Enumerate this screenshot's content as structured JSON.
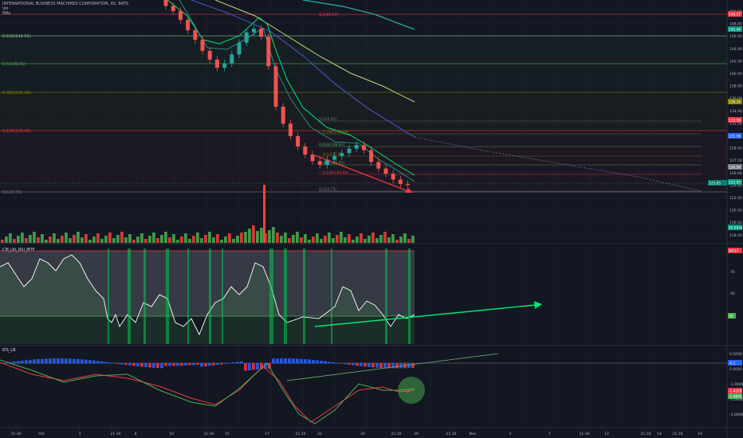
{
  "header": {
    "symbol_title": "INTERNATIONAL BUSINESS MACHINES CORPORATION, 60, BATS",
    "vol_label": "Vol",
    "mas_label": "MAs"
  },
  "indicators": {
    "rsi_title": "CM_Ult_RSI_MTF",
    "macd_title": "EIS_LB"
  },
  "fib_levels": [
    {
      "label": "1(149.57)",
      "price": 149.57,
      "color": "#f23645"
    },
    {
      "label": "0.618(142.65)",
      "price": 142.65,
      "color": "#81c784"
    },
    {
      "label": "0.5(139.01)",
      "price": 139.01,
      "color": "#4caf50"
    },
    {
      "label": "0.382(135.42)",
      "price": 135.42,
      "color": "#808000"
    },
    {
      "label": "0.236(130.95)",
      "price": 130.95,
      "color": "#f23645"
    },
    {
      "label": "0(123.73)",
      "price": 123.73,
      "color": "#787b86"
    }
  ],
  "fib_levels_2": [
    {
      "label": "1(133.95)",
      "price": 133.95
    },
    {
      "label": "0.786(130.56)",
      "price": 130.56
    },
    {
      "label": "0.618(128.61)",
      "price": 128.61
    },
    {
      "label": "0.5(127.04)",
      "price": 127.04
    },
    {
      "label": "0.382(126.92)",
      "price": 126.92
    },
    {
      "label": "0.236(124.08)",
      "price": 124.08
    },
    {
      "label": "0(123.73)",
      "price": 123.73
    }
  ],
  "price_axis": {
    "ticks": [
      "150.00",
      "148.00",
      "146.00",
      "144.00",
      "142.00",
      "140.00",
      "138.00",
      "136.00",
      "134.00",
      "132.00",
      "130.00",
      "128.50",
      "127.50",
      "126.00",
      "124.00",
      "122.50",
      "120.50",
      "119.50",
      "118.50"
    ],
    "price_tags": [
      {
        "text": "149.57",
        "color": "#f23645"
      },
      {
        "text": "145.44",
        "color": "#089981"
      },
      {
        "text": "136.34",
        "color": "#808000"
      },
      {
        "text": "133.96",
        "color": "#f23645"
      },
      {
        "text": "131.56",
        "color": "#2962ff"
      },
      {
        "text": "126.58",
        "color": "#787b86"
      },
      {
        "text": "125.95",
        "color": "#089981"
      },
      {
        "text": "95.6434",
        "color": "#089981"
      },
      {
        "text": "84.37",
        "color": "#f23645"
      }
    ],
    "current_price": "125.95"
  },
  "rsi_axis": {
    "ticks": [
      "90",
      "70",
      "50",
      "30"
    ],
    "tag": "30"
  },
  "macd_axis": {
    "ticks": [
      "0.5000",
      "0.0000",
      "-1.0000",
      "-2.0000",
      "-3.0000"
    ],
    "tags": [
      "-0.1",
      "-1.4209",
      "-1.9850"
    ]
  },
  "time_axis": {
    "labels": [
      "21:30",
      "Oct",
      "3",
      "21:30",
      "8",
      "10",
      "21:30",
      "15",
      "17",
      "21:30",
      "22",
      "24",
      "21:30",
      "29",
      "21:30",
      "Nov",
      "5",
      "7",
      "21:30",
      "12",
      "21:30",
      "14",
      "21:30",
      "19"
    ]
  },
  "colors": {
    "background": "#131722",
    "up": "#26a69a",
    "down": "#ef5350",
    "vol_up": "#4caf50",
    "vol_down": "#f44336",
    "ema_fast": "#00e676",
    "ema_mid": "#1a237e",
    "ema_slow": "#c8d27a",
    "rsi_fill": "#787b86",
    "rsi_line": "#ffffff",
    "macd_signal": "#f23645",
    "macd_line": "#4caf50",
    "trend_line": "#66bb6a",
    "arrow_red": "#f23645"
  },
  "chart_data": {
    "type": "candlestick",
    "title": "INTERNATIONAL BUSINESS MACHINES CORPORATION, 60, BATS",
    "ylim": [
      118,
      151
    ],
    "close_series_approx": [
      150.2,
      149.5,
      148.3,
      146.9,
      145.6,
      144.1,
      142.9,
      141.8,
      142.4,
      143.6,
      145.2,
      146.6,
      147.1,
      146.0,
      142.0,
      136.5,
      134.2,
      132.5,
      131.1,
      130.0,
      129.1,
      128.6,
      129.3,
      129.8,
      130.2,
      130.8,
      131.3,
      130.6,
      129.0,
      128.1,
      127.4,
      126.6,
      126.0,
      125.9
    ]
  }
}
